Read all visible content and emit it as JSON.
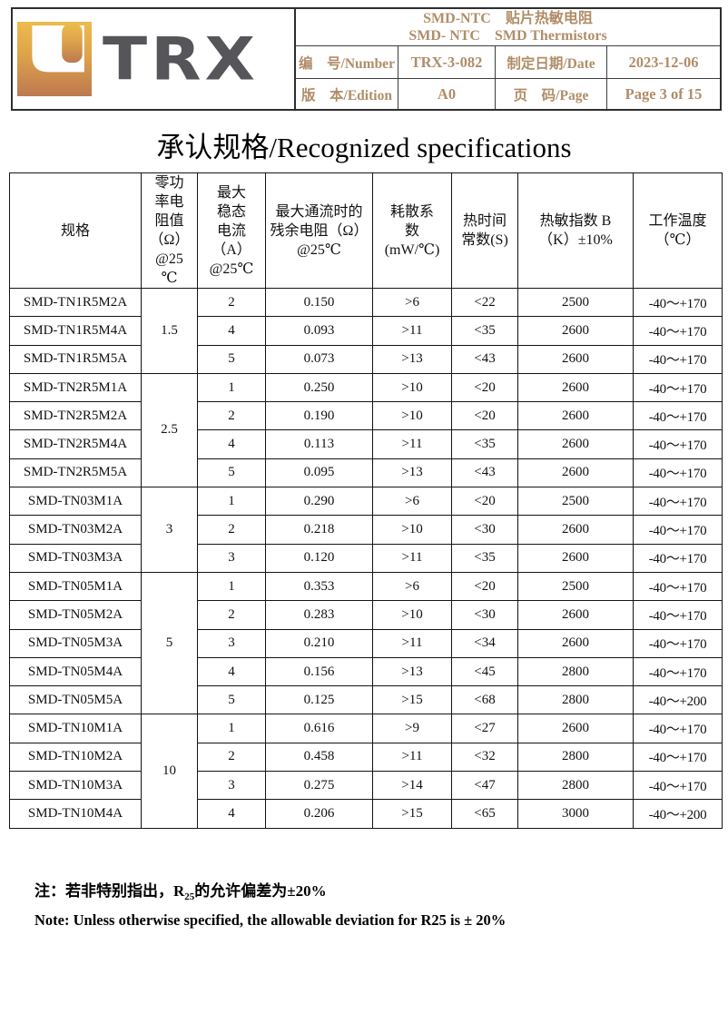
{
  "header": {
    "logo_text": "TRX",
    "logo_gradient_top": "#ecbc4d",
    "logo_gradient_mid": "#dda34b",
    "logo_gradient_bottom": "#bd7950",
    "logo_text_color": "#56565a",
    "accent_color": "#b08d68",
    "product_title_cn": "SMD-NTC　贴片热敏电阻",
    "product_title_en": "SMD- NTC　SMD Thermistors",
    "number_label": "编　号/Number",
    "number_value": "TRX-3-082",
    "date_label": "制定日期/Date",
    "date_value": "2023-12-06",
    "edition_label": "版　本/Edition",
    "edition_value": "A0",
    "page_label": "页　码/Page",
    "page_value": "Page 3 of 15"
  },
  "title": "承认规格/Recognized specifications",
  "spec_table": {
    "headers": [
      "规格",
      "零功\n率电\n阻值\n（Ω）\n@25\n℃",
      "最大\n稳态\n电流\n（A）\n@25℃",
      "最大通流时的\n残余电阻（Ω）\n@25℃",
      "耗散系\n数\n(mW/℃)",
      "热时间\n常数(S)",
      "热敏指数 B\n（K）±10%",
      "工作温度\n（℃）"
    ],
    "groups": [
      {
        "r25": "1.5",
        "rows": [
          {
            "model": "SMD-TN1R5M2A",
            "current": "2",
            "residual": "0.150",
            "dissipation": ">6",
            "time_const": "<22",
            "beta": "2500",
            "temp": "-40～+170"
          },
          {
            "model": "SMD-TN1R5M4A",
            "current": "4",
            "residual": "0.093",
            "dissipation": ">11",
            "time_const": "<35",
            "beta": "2600",
            "temp": "-40～+170"
          },
          {
            "model": "SMD-TN1R5M5A",
            "current": "5",
            "residual": "0.073",
            "dissipation": ">13",
            "time_const": "<43",
            "beta": "2600",
            "temp": "-40～+170"
          }
        ]
      },
      {
        "r25": "2.5",
        "rows": [
          {
            "model": "SMD-TN2R5M1A",
            "current": "1",
            "residual": "0.250",
            "dissipation": ">10",
            "time_const": "<20",
            "beta": "2600",
            "temp": "-40～+170"
          },
          {
            "model": "SMD-TN2R5M2A",
            "current": "2",
            "residual": "0.190",
            "dissipation": ">10",
            "time_const": "<20",
            "beta": "2600",
            "temp": "-40～+170"
          },
          {
            "model": "SMD-TN2R5M4A",
            "current": "4",
            "residual": "0.113",
            "dissipation": ">11",
            "time_const": "<35",
            "beta": "2600",
            "temp": "-40～+170"
          },
          {
            "model": "SMD-TN2R5M5A",
            "current": "5",
            "residual": "0.095",
            "dissipation": ">13",
            "time_const": "<43",
            "beta": "2600",
            "temp": "-40～+170"
          }
        ]
      },
      {
        "r25": "3",
        "rows": [
          {
            "model": "SMD-TN03M1A",
            "current": "1",
            "residual": "0.290",
            "dissipation": ">6",
            "time_const": "<20",
            "beta": "2500",
            "temp": "-40～+170"
          },
          {
            "model": "SMD-TN03M2A",
            "current": "2",
            "residual": "0.218",
            "dissipation": ">10",
            "time_const": "<30",
            "beta": "2600",
            "temp": "-40～+170"
          },
          {
            "model": "SMD-TN03M3A",
            "current": "3",
            "residual": "0.120",
            "dissipation": ">11",
            "time_const": "<35",
            "beta": "2600",
            "temp": "-40～+170"
          }
        ]
      },
      {
        "r25": "5",
        "rows": [
          {
            "model": "SMD-TN05M1A",
            "current": "1",
            "residual": "0.353",
            "dissipation": ">6",
            "time_const": "<20",
            "beta": "2500",
            "temp": "-40～+170"
          },
          {
            "model": "SMD-TN05M2A",
            "current": "2",
            "residual": "0.283",
            "dissipation": ">10",
            "time_const": "<30",
            "beta": "2600",
            "temp": "-40～+170"
          },
          {
            "model": "SMD-TN05M3A",
            "current": "3",
            "residual": "0.210",
            "dissipation": ">11",
            "time_const": "<34",
            "beta": "2600",
            "temp": "-40～+170"
          },
          {
            "model": "SMD-TN05M4A",
            "current": "4",
            "residual": "0.156",
            "dissipation": ">13",
            "time_const": "<45",
            "beta": "2800",
            "temp": "-40～+170"
          },
          {
            "model": "SMD-TN05M5A",
            "current": "5",
            "residual": "0.125",
            "dissipation": ">15",
            "time_const": "<68",
            "beta": "2800",
            "temp": "-40～+200"
          }
        ]
      },
      {
        "r25": "10",
        "rows": [
          {
            "model": "SMD-TN10M1A",
            "current": "1",
            "residual": "0.616",
            "dissipation": ">9",
            "time_const": "<27",
            "beta": "2600",
            "temp": "-40～+170"
          },
          {
            "model": "SMD-TN10M2A",
            "current": "2",
            "residual": "0.458",
            "dissipation": ">11",
            "time_const": "<32",
            "beta": "2800",
            "temp": "-40～+170"
          },
          {
            "model": "SMD-TN10M3A",
            "current": "3",
            "residual": "0.275",
            "dissipation": ">14",
            "time_const": "<47",
            "beta": "2800",
            "temp": "-40～+170"
          },
          {
            "model": "SMD-TN10M4A",
            "current": "4",
            "residual": "0.206",
            "dissipation": ">15",
            "time_const": "<65",
            "beta": "3000",
            "temp": "-40～+200"
          }
        ]
      }
    ]
  },
  "notes": {
    "cn_prefix": "注：若非特别指出，R",
    "cn_sub": "25",
    "cn_suffix": "的允许偏差为±20%",
    "en": "Note: Unless otherwise specified, the allowable deviation for R25 is ± 20%"
  }
}
